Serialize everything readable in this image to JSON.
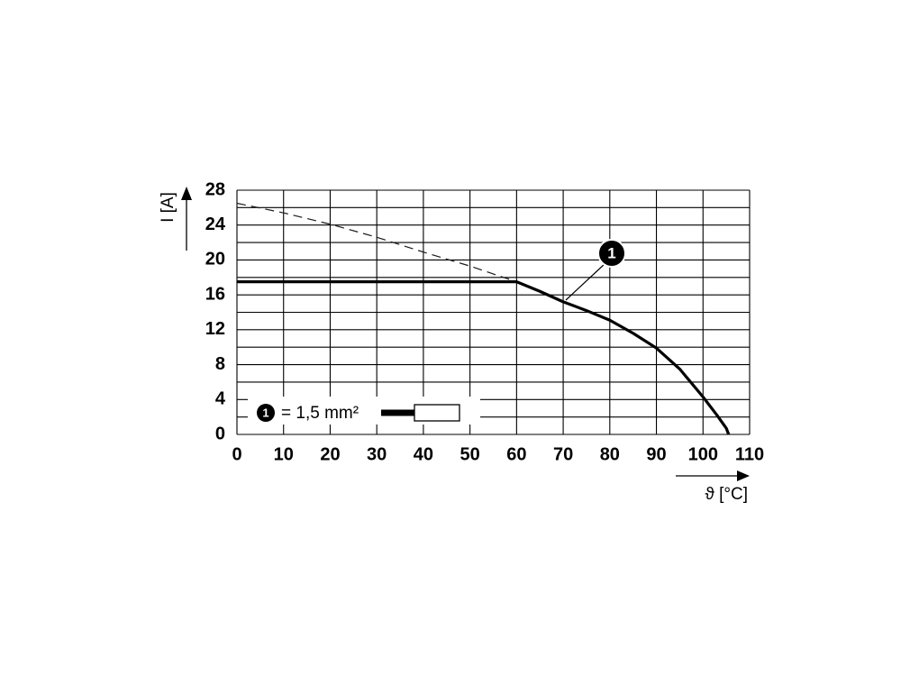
{
  "chart_data": {
    "type": "line",
    "xlabel": "ϑ [°C]",
    "ylabel": "I [A]",
    "xlim": [
      0,
      110
    ],
    "ylim": [
      0,
      28
    ],
    "xticks": [
      0,
      10,
      20,
      30,
      40,
      50,
      60,
      70,
      80,
      90,
      100,
      110
    ],
    "yticks": [
      0,
      4,
      8,
      12,
      16,
      20,
      24,
      28
    ],
    "yminor_grid": [
      2,
      6,
      10,
      14,
      18,
      22,
      26
    ],
    "grid": true,
    "series": [
      {
        "color": "#1a1a1a",
        "style": "dashed",
        "x": [
          0,
          10,
          20,
          30,
          40,
          50,
          60
        ],
        "values": [
          26.5,
          25.4,
          24.1,
          22.6,
          20.9,
          19.3,
          17.5
        ]
      },
      {
        "color": "#000000",
        "style": "solid",
        "x": [
          0,
          60,
          65,
          70,
          75,
          80,
          85,
          90,
          95,
          100,
          103,
          105,
          105.5
        ],
        "values": [
          17.5,
          17.5,
          16.4,
          15.2,
          14.2,
          13.1,
          11.6,
          9.9,
          7.5,
          4.3,
          2.2,
          0.7,
          0
        ]
      }
    ],
    "annotation": "1",
    "legend": {
      "marker": "1",
      "text": "= 1,5 mm²"
    }
  }
}
